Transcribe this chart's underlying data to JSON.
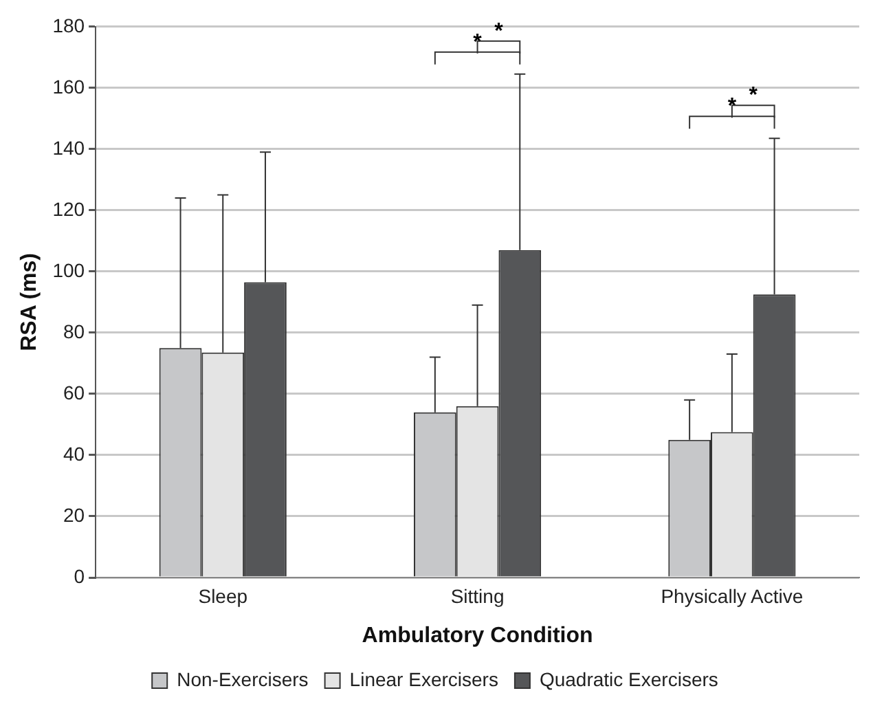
{
  "chart_data": {
    "type": "bar",
    "xlabel": "Ambulatory Condition",
    "ylabel": "RSA (ms)",
    "categories": [
      "Sleep",
      "Sitting",
      "Physically Active"
    ],
    "series": [
      {
        "name": "Non-Exercisers",
        "color": "#c6c7c9",
        "values": [
          75,
          54,
          45
        ],
        "errors": [
          [
            75,
            124
          ],
          [
            54,
            72
          ],
          [
            45,
            58
          ]
        ]
      },
      {
        "name": "Linear Exercisers",
        "color": "#e4e4e4",
        "values": [
          73.5,
          56,
          47.5
        ],
        "errors": [
          [
            73.5,
            125
          ],
          [
            56,
            89
          ],
          [
            47.5,
            73
          ]
        ]
      },
      {
        "name": "Quadratic Exercisers",
        "color": "#555658",
        "values": [
          96.5,
          107,
          92.5
        ],
        "errors": [
          [
            96.5,
            139
          ],
          [
            107,
            164.5
          ],
          [
            92.5,
            143.5
          ]
        ]
      }
    ],
    "ylim": [
      0,
      180
    ],
    "yticks": [
      0,
      20,
      40,
      60,
      80,
      100,
      120,
      140,
      160,
      180
    ],
    "grid": "y",
    "legend": "bottom",
    "annotations": [
      "*",
      "*",
      "*",
      "*"
    ]
  }
}
